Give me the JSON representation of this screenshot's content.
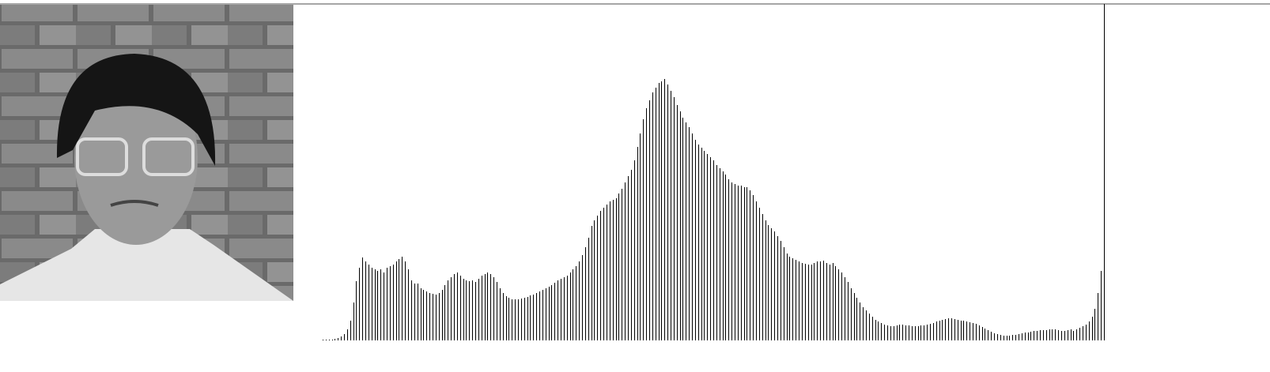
{
  "chart_data": {
    "type": "bar",
    "color": "#000000",
    "ylim": [
      0,
      340
    ],
    "values": [
      1,
      1,
      1,
      1,
      2,
      3,
      5,
      8,
      14,
      25,
      48,
      75,
      92,
      105,
      100,
      96,
      92,
      90,
      88,
      90,
      86,
      92,
      94,
      96,
      100,
      103,
      106,
      100,
      90,
      76,
      72,
      72,
      66,
      64,
      62,
      60,
      59,
      58,
      60,
      64,
      70,
      76,
      80,
      84,
      86,
      82,
      78,
      76,
      75,
      76,
      74,
      78,
      82,
      84,
      86,
      84,
      80,
      74,
      66,
      60,
      56,
      54,
      52,
      52,
      52,
      53,
      54,
      55,
      57,
      58,
      60,
      62,
      64,
      66,
      68,
      70,
      73,
      76,
      78,
      80,
      82,
      86,
      90,
      94,
      100,
      108,
      118,
      130,
      145,
      152,
      158,
      164,
      168,
      172,
      176,
      178,
      180,
      186,
      192,
      200,
      208,
      216,
      228,
      245,
      262,
      280,
      294,
      304,
      314,
      320,
      326,
      328,
      331,
      324,
      316,
      308,
      298,
      290,
      282,
      276,
      270,
      262,
      254,
      248,
      244,
      240,
      236,
      232,
      228,
      222,
      218,
      214,
      210,
      204,
      200,
      198,
      196,
      196,
      194,
      194,
      190,
      184,
      176,
      168,
      160,
      152,
      146,
      142,
      138,
      132,
      126,
      118,
      110,
      106,
      104,
      102,
      100,
      98,
      97,
      96,
      96,
      98,
      100,
      100,
      101,
      98,
      96,
      98,
      94,
      90,
      86,
      80,
      74,
      66,
      60,
      54,
      48,
      42,
      38,
      34,
      30,
      26,
      24,
      22,
      20,
      19,
      18,
      18,
      19,
      20,
      20,
      19,
      19,
      18,
      18,
      18,
      19,
      19,
      20,
      21,
      22,
      24,
      25,
      26,
      27,
      28,
      28,
      27,
      26,
      25,
      25,
      24,
      23,
      22,
      21,
      19,
      17,
      15,
      13,
      11,
      9,
      8,
      7,
      6,
      6,
      6,
      7,
      7,
      8,
      9,
      10,
      10,
      11,
      12,
      12,
      13,
      13,
      13,
      14,
      14,
      14,
      13,
      12,
      12,
      13,
      14,
      12,
      14,
      16,
      18,
      20,
      24,
      30,
      40,
      60,
      88
    ]
  }
}
